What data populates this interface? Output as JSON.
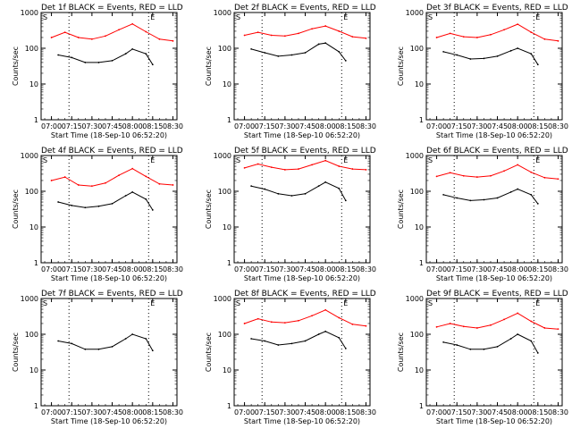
{
  "figure": {
    "xlabel": "Start Time (18-Sep-10 06:52:20)",
    "ylabel": "Counts/sec",
    "x_ticks": [
      "07:00",
      "07:15",
      "07:30",
      "07:45",
      "08:00",
      "08:15",
      "08:30"
    ],
    "y_ticks": [
      "1",
      "10",
      "100",
      "1000"
    ],
    "marker_left": "S",
    "marker_right": "E",
    "colors": {
      "events": "#000000",
      "lld": "#ff0000",
      "axes": "#000000",
      "marker_line": "#000000"
    }
  },
  "chart_data": [
    {
      "type": "line",
      "title": "Det 1f BLACK = Events, RED = LLD",
      "x_range": [
        "06:52:20",
        "08:33:00"
      ],
      "ylim": [
        1,
        1000
      ],
      "y_scale": "log",
      "marker_times": [
        "07:13",
        "08:12"
      ],
      "series": [
        {
          "name": "LLD",
          "color": "#ff0000",
          "x": [
            "07:00",
            "07:10",
            "07:20",
            "07:30",
            "07:40",
            "07:50",
            "08:00",
            "08:10",
            "08:20",
            "08:30"
          ],
          "values": [
            200,
            280,
            200,
            180,
            220,
            330,
            480,
            290,
            180,
            160
          ]
        },
        {
          "name": "Events",
          "color": "#000000",
          "x": [
            "07:05",
            "07:15",
            "07:25",
            "07:35",
            "07:45",
            "07:55",
            "08:00",
            "08:10",
            "08:15"
          ],
          "values": [
            65,
            55,
            40,
            40,
            45,
            70,
            95,
            70,
            35
          ]
        }
      ]
    },
    {
      "type": "line",
      "title": "Det 2f BLACK = Events, RED = LLD",
      "x_range": [
        "06:52:20",
        "08:33:00"
      ],
      "ylim": [
        1,
        1000
      ],
      "y_scale": "log",
      "marker_times": [
        "07:13",
        "08:12"
      ],
      "series": [
        {
          "name": "LLD",
          "color": "#ff0000",
          "x": [
            "07:00",
            "07:10",
            "07:20",
            "07:30",
            "07:40",
            "07:50",
            "08:00",
            "08:10",
            "08:20",
            "08:30"
          ],
          "values": [
            230,
            280,
            230,
            220,
            260,
            350,
            420,
            300,
            210,
            190
          ]
        },
        {
          "name": "Events",
          "color": "#000000",
          "x": [
            "07:05",
            "07:15",
            "07:25",
            "07:35",
            "07:45",
            "07:55",
            "08:00",
            "08:10",
            "08:15"
          ],
          "values": [
            95,
            75,
            60,
            65,
            75,
            130,
            140,
            80,
            45
          ]
        }
      ]
    },
    {
      "type": "line",
      "title": "Det 3f BLACK = Events, RED = LLD",
      "x_range": [
        "06:52:20",
        "08:33:00"
      ],
      "ylim": [
        1,
        1000
      ],
      "y_scale": "log",
      "marker_times": [
        "07:13",
        "08:12"
      ],
      "series": [
        {
          "name": "LLD",
          "color": "#ff0000",
          "x": [
            "07:00",
            "07:10",
            "07:20",
            "07:30",
            "07:40",
            "07:50",
            "08:00",
            "08:10",
            "08:20",
            "08:30"
          ],
          "values": [
            200,
            260,
            210,
            200,
            240,
            330,
            470,
            280,
            180,
            160
          ]
        },
        {
          "name": "Events",
          "color": "#000000",
          "x": [
            "07:05",
            "07:15",
            "07:25",
            "07:35",
            "07:45",
            "07:55",
            "08:00",
            "08:10",
            "08:15"
          ],
          "values": [
            80,
            65,
            50,
            52,
            60,
            85,
            100,
            70,
            35
          ]
        }
      ]
    },
    {
      "type": "line",
      "title": "Det 4f BLACK = Events, RED = LLD",
      "x_range": [
        "06:52:20",
        "08:33:00"
      ],
      "ylim": [
        1,
        1000
      ],
      "y_scale": "log",
      "marker_times": [
        "07:13",
        "08:12"
      ],
      "series": [
        {
          "name": "LLD",
          "color": "#ff0000",
          "x": [
            "07:00",
            "07:10",
            "07:20",
            "07:30",
            "07:40",
            "07:50",
            "08:00",
            "08:10",
            "08:20",
            "08:30"
          ],
          "values": [
            200,
            250,
            150,
            140,
            170,
            280,
            430,
            260,
            160,
            150
          ]
        },
        {
          "name": "Events",
          "color": "#000000",
          "x": [
            "07:05",
            "07:15",
            "07:25",
            "07:35",
            "07:45",
            "07:55",
            "08:00",
            "08:10",
            "08:15"
          ],
          "values": [
            50,
            40,
            35,
            38,
            45,
            75,
            95,
            60,
            30
          ]
        }
      ]
    },
    {
      "type": "line",
      "title": "Det 5f BLACK = Events, RED = LLD",
      "x_range": [
        "06:52:20",
        "08:33:00"
      ],
      "ylim": [
        1,
        1000
      ],
      "y_scale": "log",
      "marker_times": [
        "07:13",
        "08:12"
      ],
      "series": [
        {
          "name": "LLD",
          "color": "#ff0000",
          "x": [
            "07:00",
            "07:10",
            "07:20",
            "07:30",
            "07:40",
            "07:50",
            "08:00",
            "08:10",
            "08:20",
            "08:30"
          ],
          "values": [
            450,
            580,
            470,
            400,
            420,
            550,
            720,
            500,
            420,
            400
          ]
        },
        {
          "name": "Events",
          "color": "#000000",
          "x": [
            "07:05",
            "07:15",
            "07:25",
            "07:35",
            "07:45",
            "07:55",
            "08:00",
            "08:10",
            "08:15"
          ],
          "values": [
            140,
            115,
            85,
            75,
            85,
            140,
            180,
            120,
            55
          ]
        }
      ]
    },
    {
      "type": "line",
      "title": "Det 6f BLACK = Events, RED = LLD",
      "x_range": [
        "06:52:20",
        "08:33:00"
      ],
      "ylim": [
        1,
        1000
      ],
      "y_scale": "log",
      "marker_times": [
        "07:13",
        "08:12"
      ],
      "series": [
        {
          "name": "LLD",
          "color": "#ff0000",
          "x": [
            "07:00",
            "07:10",
            "07:20",
            "07:30",
            "07:40",
            "07:50",
            "08:00",
            "08:10",
            "08:20",
            "08:30"
          ],
          "values": [
            260,
            330,
            270,
            250,
            270,
            370,
            550,
            340,
            240,
            220
          ]
        },
        {
          "name": "Events",
          "color": "#000000",
          "x": [
            "07:05",
            "07:15",
            "07:25",
            "07:35",
            "07:45",
            "07:55",
            "08:00",
            "08:10",
            "08:15"
          ],
          "values": [
            80,
            65,
            55,
            58,
            65,
            95,
            115,
            80,
            45
          ]
        }
      ]
    },
    {
      "type": "line",
      "title": "Det 7f BLACK = Events, RED = LLD",
      "x_range": [
        "06:52:20",
        "08:33:00"
      ],
      "ylim": [
        1,
        1000
      ],
      "y_scale": "log",
      "marker_times": [
        "07:13",
        "08:12"
      ],
      "series": [
        {
          "name": "Events",
          "color": "#000000",
          "x": [
            "07:05",
            "07:15",
            "07:25",
            "07:35",
            "07:45",
            "07:55",
            "08:00",
            "08:10",
            "08:15"
          ],
          "values": [
            65,
            55,
            38,
            38,
            45,
            75,
            100,
            75,
            35
          ]
        }
      ]
    },
    {
      "type": "line",
      "title": "Det 8f BLACK = Events, RED = LLD",
      "x_range": [
        "06:52:20",
        "08:33:00"
      ],
      "ylim": [
        1,
        1000
      ],
      "y_scale": "log",
      "marker_times": [
        "07:13",
        "08:12"
      ],
      "series": [
        {
          "name": "LLD",
          "color": "#ff0000",
          "x": [
            "07:00",
            "07:10",
            "07:20",
            "07:30",
            "07:40",
            "07:50",
            "08:00",
            "08:10",
            "08:20",
            "08:30"
          ],
          "values": [
            200,
            270,
            220,
            210,
            240,
            330,
            480,
            290,
            190,
            170
          ]
        },
        {
          "name": "Events",
          "color": "#000000",
          "x": [
            "07:05",
            "07:15",
            "07:25",
            "07:35",
            "07:45",
            "07:55",
            "08:00",
            "08:10",
            "08:15"
          ],
          "values": [
            75,
            65,
            50,
            55,
            65,
            100,
            120,
            80,
            40
          ]
        }
      ]
    },
    {
      "type": "line",
      "title": "Det 9f BLACK = Events, RED = LLD",
      "x_range": [
        "06:52:20",
        "08:33:00"
      ],
      "ylim": [
        1,
        1000
      ],
      "y_scale": "log",
      "marker_times": [
        "07:13",
        "08:12"
      ],
      "series": [
        {
          "name": "LLD",
          "color": "#ff0000",
          "x": [
            "07:00",
            "07:10",
            "07:20",
            "07:30",
            "07:40",
            "07:50",
            "08:00",
            "08:10",
            "08:20",
            "08:30"
          ],
          "values": [
            160,
            200,
            165,
            150,
            180,
            260,
            390,
            230,
            150,
            140
          ]
        },
        {
          "name": "Events",
          "color": "#000000",
          "x": [
            "07:05",
            "07:15",
            "07:25",
            "07:35",
            "07:45",
            "07:55",
            "08:00",
            "08:10",
            "08:15"
          ],
          "values": [
            60,
            50,
            38,
            38,
            45,
            75,
            100,
            65,
            30
          ]
        }
      ]
    }
  ]
}
